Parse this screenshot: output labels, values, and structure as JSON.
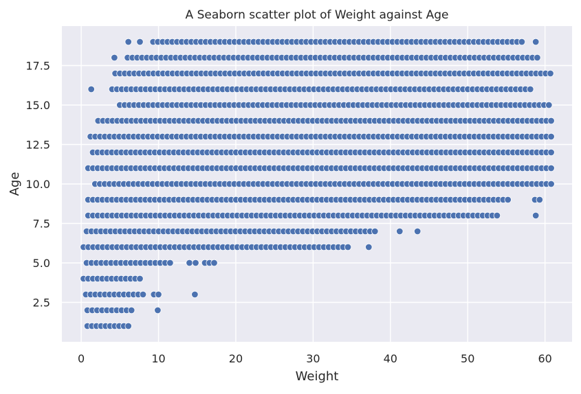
{
  "chart_data": {
    "type": "scatter",
    "title": "A Seaborn scatter plot of Weight against Age",
    "xlabel": "Weight",
    "ylabel": "Age",
    "xlim": [
      -2.5,
      63.5
    ],
    "ylim": [
      0.0,
      20.0
    ],
    "xticks": [
      0,
      10,
      20,
      30,
      40,
      50,
      60
    ],
    "yticks": [
      2.5,
      5.0,
      7.5,
      10.0,
      12.5,
      15.0,
      17.5
    ],
    "xtick_labels": [
      "0",
      "10",
      "20",
      "30",
      "40",
      "50",
      "60"
    ],
    "ytick_labels": [
      "2.5",
      "5.0",
      "7.5",
      "10.0",
      "12.5",
      "15.0",
      "17.5"
    ],
    "grid": true,
    "legend": "none",
    "colors": {
      "background": "#eaeaf2",
      "grid": "#ffffff",
      "marker": "#4c72b0",
      "marker_edge": "#ffffff"
    },
    "series": [
      {
        "ages": [
          1,
          2,
          3,
          4,
          5,
          6,
          7,
          8,
          9,
          10,
          11,
          12,
          13,
          14,
          15,
          16,
          17,
          18,
          19
        ],
        "weight_ranges": [
          [
            [
              0.8,
              6.1
            ]
          ],
          [
            [
              0.8,
              6.5
            ],
            [
              9.9,
              9.9
            ]
          ],
          [
            [
              0.6,
              8.0
            ],
            [
              9.4,
              10.0
            ],
            [
              14.7,
              14.7
            ]
          ],
          [
            [
              0.3,
              7.6
            ]
          ],
          [
            [
              0.7,
              11.5
            ],
            [
              14.0,
              14.8
            ],
            [
              16.0,
              17.2
            ]
          ],
          [
            [
              0.3,
              34.5
            ],
            [
              37.2,
              37.2
            ]
          ],
          [
            [
              0.7,
              38.0
            ],
            [
              41.2,
              41.2
            ],
            [
              43.5,
              43.5
            ]
          ],
          [
            [
              0.9,
              53.8
            ],
            [
              58.8,
              58.8
            ]
          ],
          [
            [
              0.9,
              55.2
            ],
            [
              58.7,
              59.3
            ]
          ],
          [
            [
              1.8,
              60.8
            ]
          ],
          [
            [
              0.9,
              60.8
            ]
          ],
          [
            [
              1.5,
              60.8
            ]
          ],
          [
            [
              1.2,
              60.8
            ]
          ],
          [
            [
              2.2,
              60.8
            ]
          ],
          [
            [
              5.0,
              60.5
            ]
          ],
          [
            [
              1.3,
              1.3
            ],
            [
              4.0,
              58.1
            ]
          ],
          [
            [
              4.4,
              60.7
            ]
          ],
          [
            [
              4.3,
              4.3
            ],
            [
              6.0,
              59.0
            ]
          ],
          [
            [
              6.1,
              6.1
            ],
            [
              7.6,
              7.6
            ],
            [
              9.3,
              57.0
            ],
            [
              58.8,
              58.8
            ]
          ]
        ],
        "point_spacing": 0.62
      }
    ]
  }
}
